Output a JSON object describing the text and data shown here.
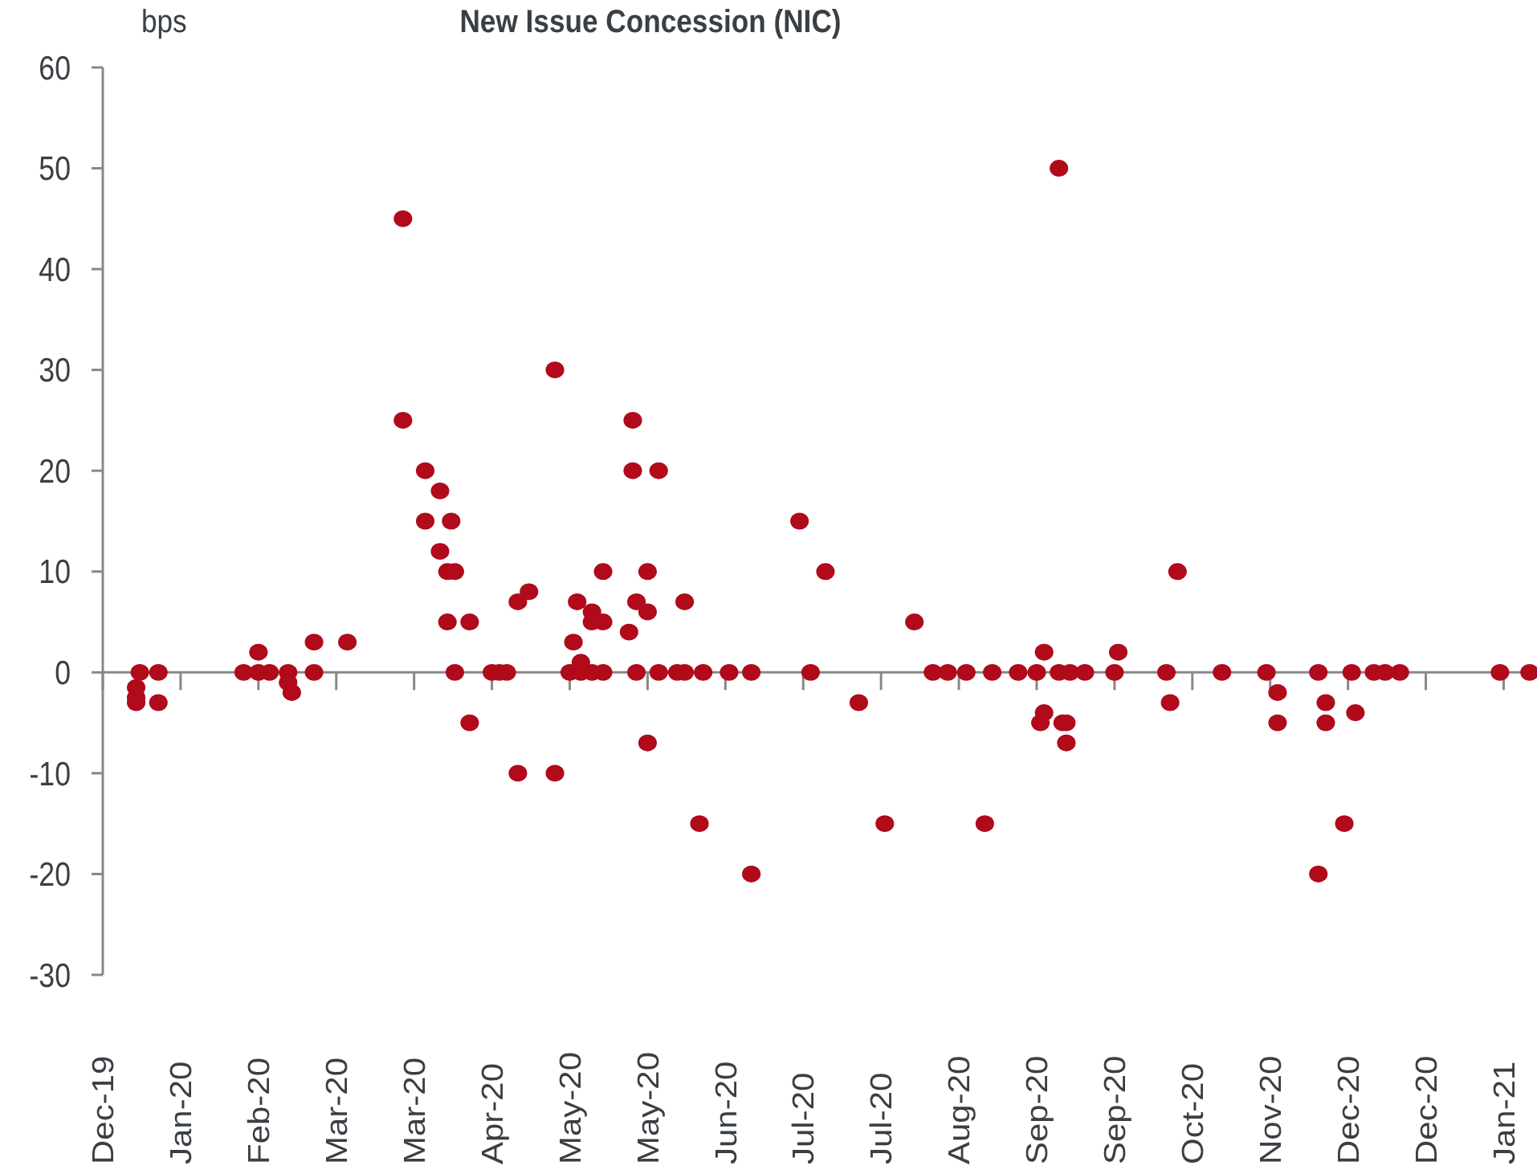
{
  "chart_data": {
    "type": "scatter",
    "title": "New Issue Concession (NIC)",
    "ylabel": "bps",
    "xlim": [
      "2019-12-31",
      "2021-01-21"
    ],
    "ylim": [
      -30,
      60
    ],
    "yticks": [
      60,
      50,
      40,
      30,
      20,
      10,
      0,
      -10,
      -20,
      -30
    ],
    "xticks": [
      {
        "value": "2019-12-31",
        "label": "Dec-19"
      },
      {
        "value": "2020-01-21",
        "label": "Jan-20"
      },
      {
        "value": "2020-02-11",
        "label": "Feb-20"
      },
      {
        "value": "2020-03-03",
        "label": "Mar-20"
      },
      {
        "value": "2020-03-24",
        "label": "Mar-20"
      },
      {
        "value": "2020-04-14",
        "label": "Apr-20"
      },
      {
        "value": "2020-05-05",
        "label": "May-20"
      },
      {
        "value": "2020-05-26",
        "label": "May-20"
      },
      {
        "value": "2020-06-16",
        "label": "Jun-20"
      },
      {
        "value": "2020-07-07",
        "label": "Jul-20"
      },
      {
        "value": "2020-07-28",
        "label": "Jul-20"
      },
      {
        "value": "2020-08-18",
        "label": "Aug-20"
      },
      {
        "value": "2020-09-08",
        "label": "Sep-20"
      },
      {
        "value": "2020-09-29",
        "label": "Sep-20"
      },
      {
        "value": "2020-10-20",
        "label": "Oct-20"
      },
      {
        "value": "2020-11-10",
        "label": "Nov-20"
      },
      {
        "value": "2020-12-01",
        "label": "Dec-20"
      },
      {
        "value": "2020-12-22",
        "label": "Dec-20"
      },
      {
        "value": "2021-01-12",
        "label": "Jan-21"
      }
    ],
    "marker": "circle",
    "series": [
      {
        "color": "#b00a1b",
        "x": [
          "2020-01-10",
          "2020-01-09",
          "2020-01-09",
          "2020-01-09",
          "2020-01-15",
          "2020-01-15",
          "2020-02-07",
          "2020-02-11",
          "2020-02-11",
          "2020-02-14",
          "2020-02-19",
          "2020-02-19",
          "2020-02-20",
          "2020-02-26",
          "2020-02-26",
          "2020-03-06",
          "2020-03-21",
          "2020-03-21",
          "2020-03-27",
          "2020-03-31",
          "2020-03-27",
          "2020-04-03",
          "2020-03-31",
          "2020-04-02",
          "2020-04-04",
          "2020-04-02",
          "2020-04-08",
          "2020-04-04",
          "2020-04-08",
          "2020-04-14",
          "2020-04-16",
          "2020-04-18",
          "2020-04-21",
          "2020-04-21",
          "2020-04-24",
          "2020-05-01",
          "2020-05-01",
          "2020-05-05",
          "2020-05-06",
          "2020-05-07",
          "2020-05-08",
          "2020-05-08",
          "2020-05-11",
          "2020-05-11",
          "2020-05-14",
          "2020-05-11",
          "2020-05-14",
          "2020-05-14",
          "2020-05-22",
          "2020-05-22",
          "2020-05-29",
          "2020-05-23",
          "2020-05-21",
          "2020-05-23",
          "2020-05-26",
          "2020-05-26",
          "2020-05-26",
          "2020-05-29",
          "2020-06-05",
          "2020-06-03",
          "2020-06-05",
          "2020-06-10",
          "2020-06-17",
          "2020-06-23",
          "2020-06-09",
          "2020-06-23",
          "2020-07-06",
          "2020-07-13",
          "2020-07-09",
          "2020-07-22",
          "2020-08-06",
          "2020-07-29",
          "2020-08-11",
          "2020-08-15",
          "2020-08-20",
          "2020-08-27",
          "2020-08-25",
          "2020-09-14",
          "2020-09-03",
          "2020-09-08",
          "2020-09-10",
          "2020-09-14",
          "2020-09-17",
          "2020-09-21",
          "2020-09-10",
          "2020-09-09",
          "2020-09-15",
          "2020-09-16",
          "2020-09-16",
          "2020-09-29",
          "2020-09-30",
          "2020-10-13",
          "2020-10-14",
          "2020-10-16",
          "2020-10-28",
          "2020-11-09",
          "2020-11-12",
          "2020-11-12",
          "2020-11-23",
          "2020-11-25",
          "2020-11-25",
          "2020-11-23",
          "2020-11-30",
          "2020-12-03",
          "2020-12-02",
          "2020-12-08",
          "2020-12-11",
          "2020-12-15",
          "2021-01-11",
          "2021-01-19"
        ],
        "values": [
          0,
          -1.5,
          -2.5,
          -3,
          0,
          -3,
          0,
          2,
          0,
          0,
          0,
          -1,
          -2,
          3,
          0,
          3,
          45,
          25,
          20,
          18,
          15,
          15,
          12,
          10,
          10,
          5,
          5,
          0,
          -5,
          0,
          0,
          0,
          -10,
          7,
          8,
          30,
          -10,
          0,
          3,
          7,
          1,
          0,
          6,
          5,
          5,
          0,
          0,
          10,
          25,
          20,
          20,
          7,
          4,
          0,
          10,
          6,
          -7,
          0,
          7,
          0,
          0,
          0,
          0,
          0,
          -15,
          -20,
          15,
          10,
          0,
          -3,
          5,
          -15,
          0,
          0,
          0,
          0,
          -15,
          50,
          0,
          0,
          2,
          0,
          0,
          0,
          -4,
          -5,
          -5,
          -5,
          -7,
          0,
          2,
          0,
          -3,
          10,
          0,
          0,
          -2,
          -5,
          0,
          -3,
          -5,
          -20,
          -15,
          -4,
          0,
          0,
          0,
          0,
          0,
          0
        ]
      }
    ]
  }
}
